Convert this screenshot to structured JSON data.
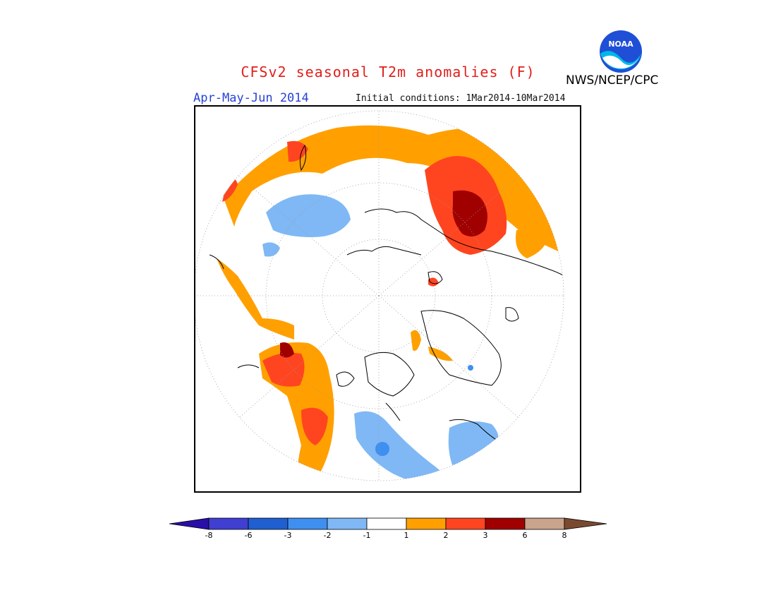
{
  "title": "CFSv2 seasonal T2m anomalies (F)",
  "season": "Apr-May-Jun 2014",
  "initial_conditions": "Initial conditions: 1Mar2014-10Mar2014",
  "agency": "NWS/NCEP/CPC",
  "logo": {
    "text": "NOAA",
    "icon": "noaa-logo-icon"
  },
  "colorbar": {
    "colors": [
      "#2a0ea8",
      "#3f3fd1",
      "#1f5fd0",
      "#3f8ff0",
      "#7fb8f5",
      "#ffffff",
      "#ffa000",
      "#ff4520",
      "#a00000",
      "#c9a38b",
      "#7a4a30"
    ],
    "tick_labels": [
      "-8",
      "-6",
      "-3",
      "-2",
      "-1",
      "1",
      "2",
      "3",
      "6",
      "8"
    ]
  },
  "colors": {
    "coast": "#000000",
    "grid": "#999999",
    "warm1": "#ffa000",
    "warm2": "#ff4520",
    "warm3": "#a00000",
    "cool1": "#7fb8f5",
    "cool2": "#3f8ff0"
  }
}
